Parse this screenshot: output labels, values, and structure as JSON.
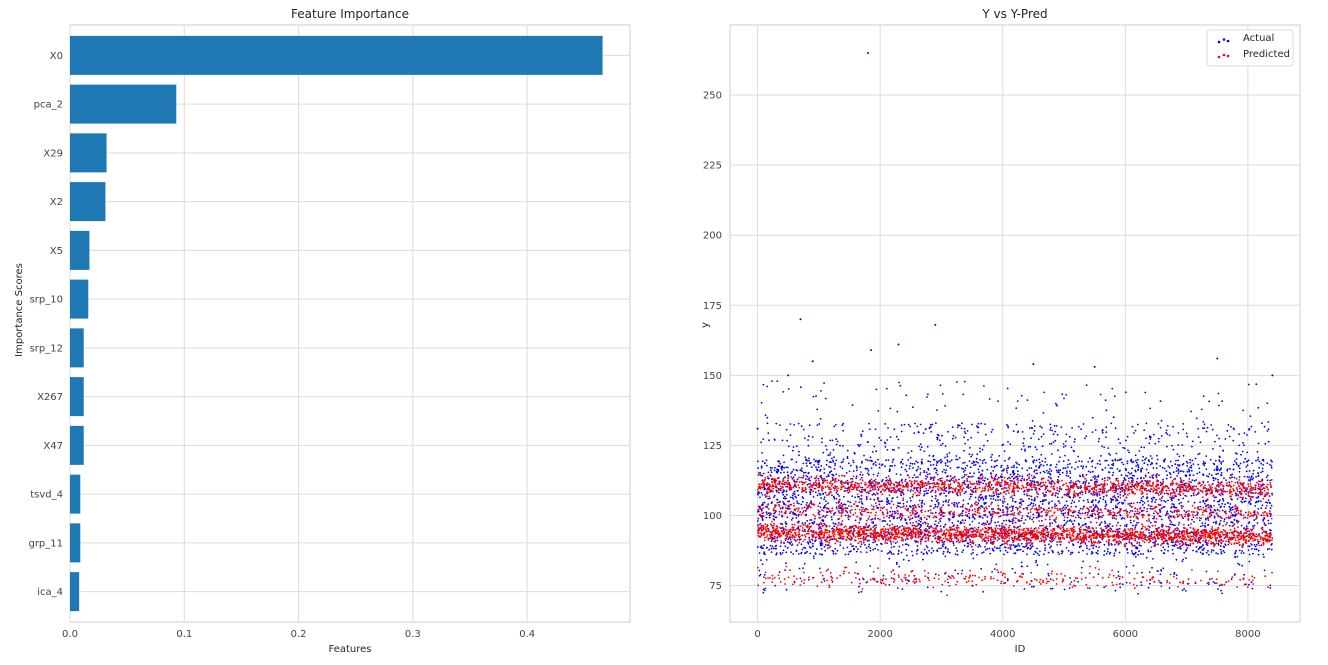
{
  "colors": {
    "bar": "#1f77b4",
    "actual": "#0000ff",
    "predicted": "#ff0000",
    "grid": "#dcdcdc",
    "spine": "#cccccc",
    "text": "#262626",
    "tick_text": "#444444"
  },
  "chart_data": [
    {
      "type": "bar",
      "orientation": "horizontal",
      "title": "Feature Importance",
      "xlabel": "Features",
      "ylabel": "Importance Scores",
      "categories": [
        "X0",
        "pca_2",
        "X29",
        "X2",
        "X5",
        "srp_10",
        "srp_12",
        "X267",
        "X47",
        "tsvd_4",
        "grp_11",
        "ica_4"
      ],
      "values": [
        0.466,
        0.093,
        0.032,
        0.031,
        0.017,
        0.016,
        0.012,
        0.012,
        0.012,
        0.009,
        0.009,
        0.008
      ],
      "xlim": [
        0,
        0.49
      ],
      "xticks": [
        0.0,
        0.1,
        0.2,
        0.3,
        0.4
      ],
      "xtick_labels": [
        "0.0",
        "0.1",
        "0.2",
        "0.3",
        "0.4"
      ],
      "grid": true
    },
    {
      "type": "scatter",
      "title": "Y vs Y-Pred",
      "xlabel": "ID",
      "ylabel": "y",
      "xlim": [
        -450,
        8850
      ],
      "ylim": [
        62,
        275
      ],
      "xticks": [
        0,
        2000,
        4000,
        6000,
        8000
      ],
      "xtick_labels": [
        "0",
        "2000",
        "4000",
        "6000",
        "8000"
      ],
      "yticks": [
        75,
        100,
        125,
        150,
        175,
        200,
        225,
        250
      ],
      "ytick_labels": [
        "75",
        "100",
        "125",
        "150",
        "175",
        "200",
        "225",
        "250"
      ],
      "grid": true,
      "legend_position": "top-right",
      "series": [
        {
          "name": "Actual",
          "color": "#0000ff",
          "x_range": [
            0,
            8400
          ],
          "n_points": 4200,
          "typical_range": [
            86,
            125
          ],
          "sample_points": [
            {
              "x": 1800,
              "y": 265
            },
            {
              "x": 700,
              "y": 170
            },
            {
              "x": 2900,
              "y": 168
            },
            {
              "x": 2300,
              "y": 161
            },
            {
              "x": 1850,
              "y": 159
            },
            {
              "x": 7500,
              "y": 156
            },
            {
              "x": 900,
              "y": 155
            },
            {
              "x": 4500,
              "y": 154
            },
            {
              "x": 5500,
              "y": 153
            },
            {
              "x": 500,
              "y": 150
            },
            {
              "x": 8400,
              "y": 150
            },
            {
              "x": 0,
              "y": 131
            }
          ]
        },
        {
          "name": "Predicted",
          "color": "#ff0000",
          "x_range": [
            0,
            8400
          ],
          "n_points": 4200,
          "clusters": [
            94,
            111,
            102,
            78
          ]
        }
      ]
    }
  ],
  "legend": {
    "actual_label": "Actual",
    "predicted_label": "Predicted"
  }
}
